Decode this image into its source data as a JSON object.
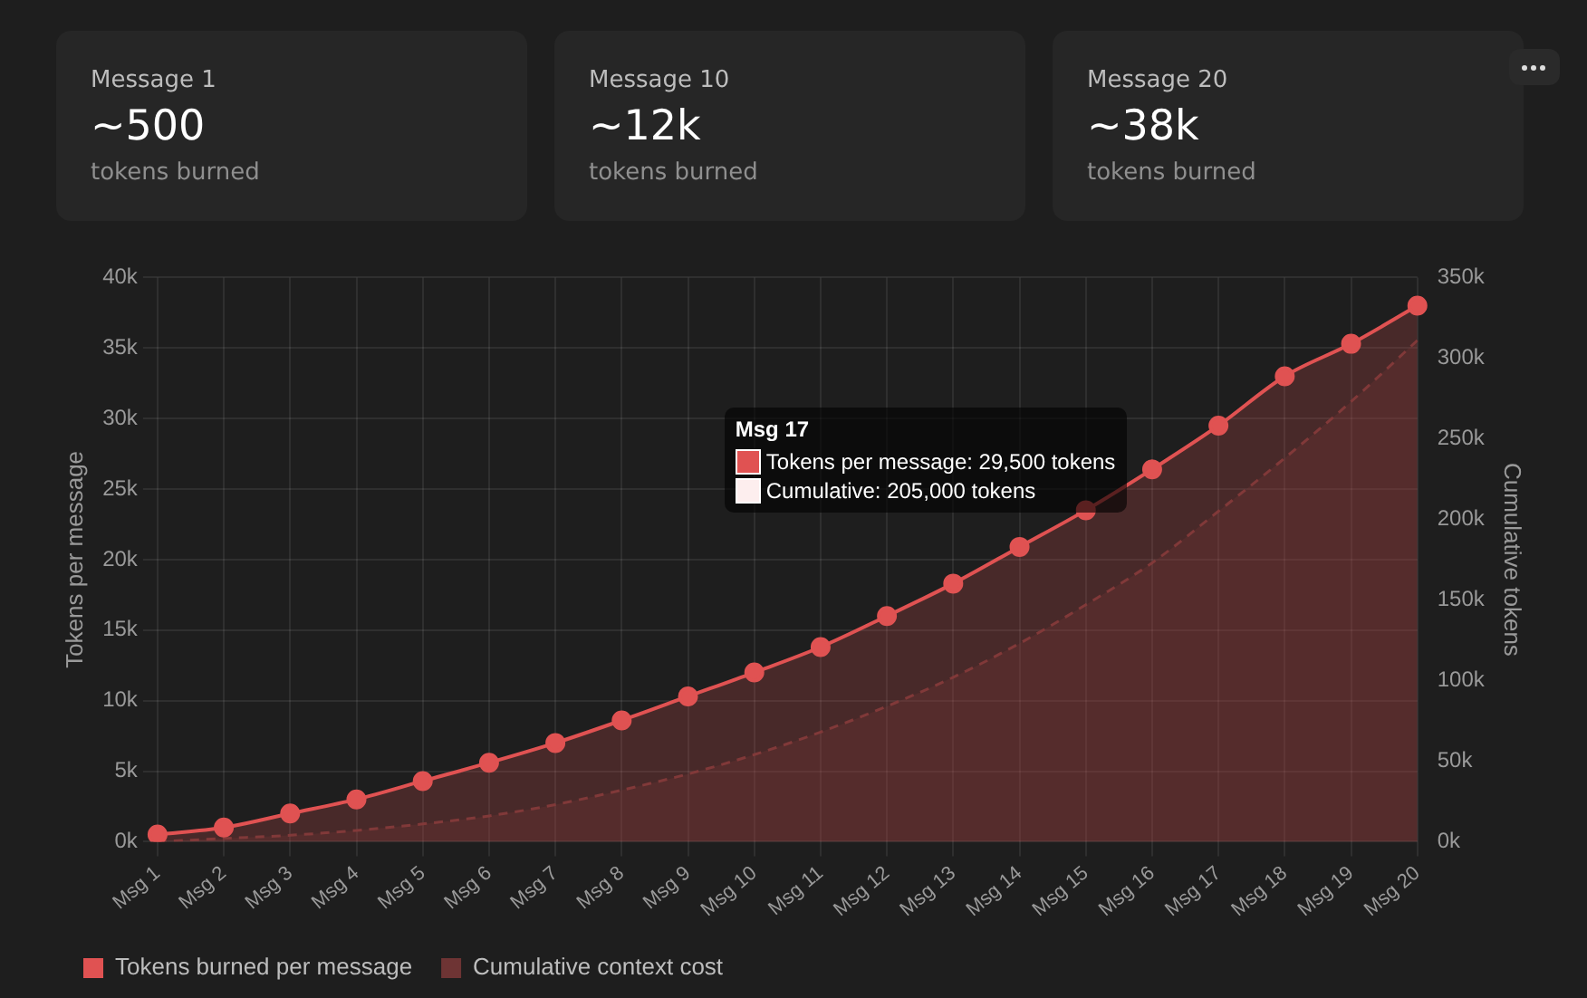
{
  "chart_data": [
    {
      "type": "other",
      "annotations": [
        "Message 1",
        "~500",
        "tokens burned",
        "Message 10",
        "~12k",
        "tokens burned",
        "Message 20",
        "~38k",
        "tokens burned"
      ]
    },
    {
      "type": "line",
      "categories": [
        "Msg 1",
        "Msg 2",
        "Msg 3",
        "Msg 4",
        "Msg 5",
        "Msg 6",
        "Msg 7",
        "Msg 8",
        "Msg 9",
        "Msg 10",
        "Msg 11",
        "Msg 12",
        "Msg 13",
        "Msg 14",
        "Msg 15",
        "Msg 16",
        "Msg 17",
        "Msg 18",
        "Msg 19",
        "Msg 20"
      ],
      "series": [
        {
          "name": "Tokens burned per message",
          "type": "area",
          "color": "#e05252",
          "marker": "circle",
          "line_style": "solid",
          "values": [
            500,
            1000,
            2000,
            3000,
            4300,
            5600,
            7000,
            8600,
            10300,
            12000,
            13800,
            16000,
            18300,
            20900,
            23500,
            26400,
            29500,
            33000,
            35300,
            38000
          ]
        },
        {
          "name": "Cumulative context cost",
          "type": "area",
          "axis": "y2",
          "color": "#6e3434",
          "marker": "none",
          "line_style": "dashed",
          "values": [
            0,
            2000,
            4000,
            7000,
            11000,
            16000,
            23000,
            32000,
            42000,
            54000,
            68000,
            84000,
            102000,
            123000,
            147000,
            173000,
            205000,
            238000,
            273000,
            311000
          ]
        }
      ],
      "ylabel": "Tokens per message",
      "y2label": "Cumulative tokens",
      "ylim": [
        0,
        40000
      ],
      "yticks": [
        {
          "value": 0,
          "label": "0k"
        },
        {
          "value": 5000,
          "label": "5k"
        },
        {
          "value": 10000,
          "label": "10k"
        },
        {
          "value": 15000,
          "label": "15k"
        },
        {
          "value": 20000,
          "label": "20k"
        },
        {
          "value": 25000,
          "label": "25k"
        },
        {
          "value": 30000,
          "label": "30k"
        },
        {
          "value": 35000,
          "label": "35k"
        },
        {
          "value": 40000,
          "label": "40k"
        }
      ],
      "y2lim": [
        0,
        350000
      ],
      "y2ticks": [
        {
          "value": 0,
          "label": "0k"
        },
        {
          "value": 50000,
          "label": "50k"
        },
        {
          "value": 100000,
          "label": "100k"
        },
        {
          "value": 150000,
          "label": "150k"
        },
        {
          "value": 200000,
          "label": "200k"
        },
        {
          "value": 250000,
          "label": "250k"
        },
        {
          "value": 300000,
          "label": "300k"
        },
        {
          "value": 350000,
          "label": "350k"
        }
      ],
      "grid": true,
      "legend": "bottom left",
      "annotations": [
        "Msg 17",
        "Tokens per message: 29,500 tokens",
        "Cumulative: 205,000 tokens"
      ]
    }
  ]
}
